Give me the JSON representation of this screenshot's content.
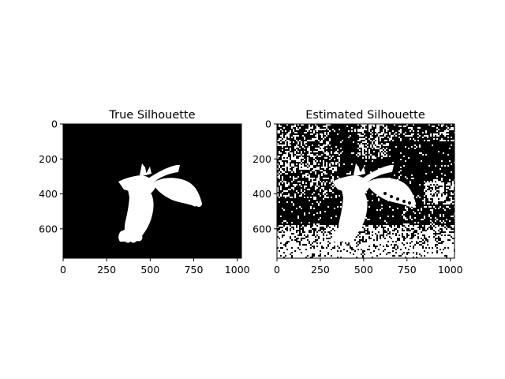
{
  "chart_data": [
    {
      "type": "image",
      "title": "True Silhouette",
      "xlim": [
        0,
        1024
      ],
      "ylim": [
        768,
        0
      ],
      "xticks": [
        0,
        250,
        500,
        750,
        1000
      ],
      "yticks": [
        0,
        200,
        400,
        600
      ],
      "xtick_labels": [
        "0",
        "250",
        "500",
        "750",
        "1000"
      ],
      "ytick_labels": [
        "0",
        "200",
        "400",
        "600"
      ],
      "colormap": [
        "#000000",
        "#ffffff"
      ],
      "noise": false
    },
    {
      "type": "image",
      "title": "Estimated Silhouette",
      "xlim": [
        0,
        1024
      ],
      "ylim": [
        768,
        0
      ],
      "xticks": [
        0,
        250,
        500,
        750,
        1000
      ],
      "yticks": [
        0,
        200,
        400,
        600
      ],
      "xtick_labels": [
        "0",
        "250",
        "500",
        "750",
        "1000"
      ],
      "ytick_labels": [
        "0",
        "200",
        "400",
        "600"
      ],
      "colormap": [
        "#000000",
        "#ffffff"
      ],
      "noise": true
    }
  ]
}
